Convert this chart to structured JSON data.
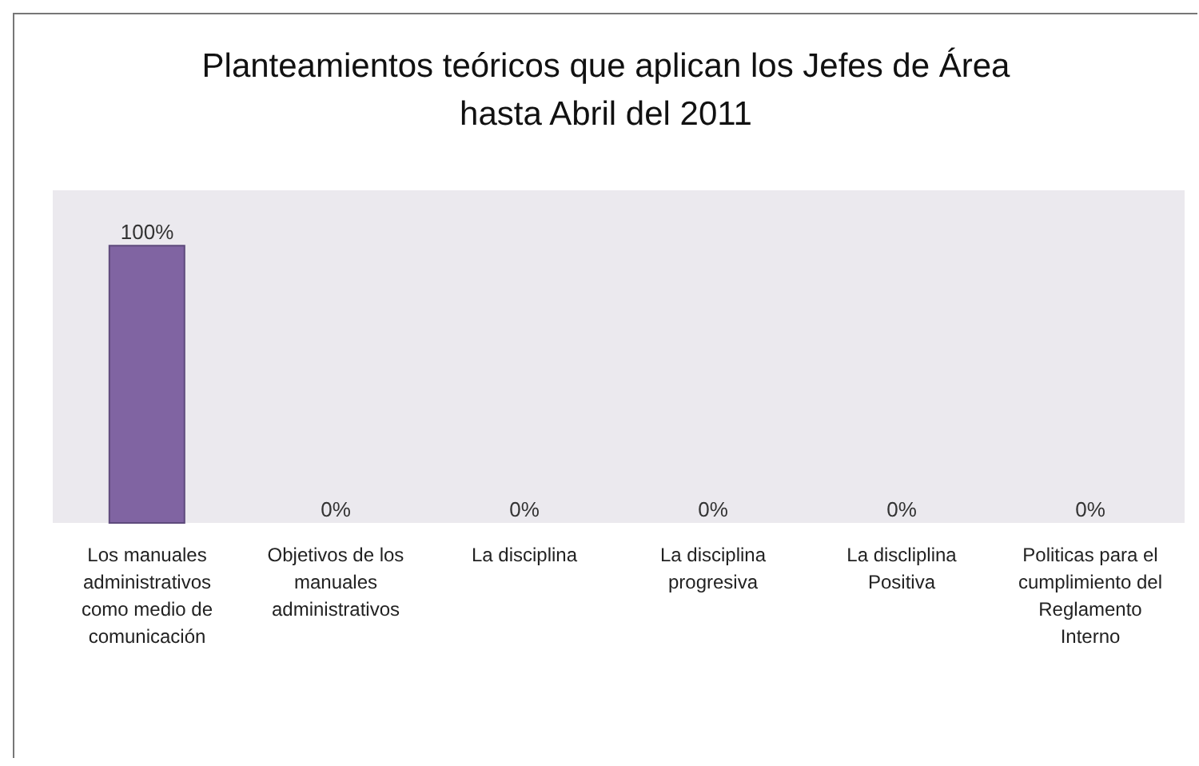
{
  "chart_data": {
    "type": "bar",
    "title": "Planteamientos teóricos que aplican los Jefes de Área hasta Abril del 2011",
    "categories": [
      "Los manuales administrativos como medio de comunicación",
      "Objetivos de los manuales administrativos",
      "La disciplina",
      "La disciplina progresiva",
      "La discliplina Positiva",
      "Politicas para el cumplimiento del Reglamento Interno"
    ],
    "values": [
      100,
      0,
      0,
      0,
      0,
      0
    ],
    "value_labels": [
      "100%",
      "0%",
      "0%",
      "0%",
      "0%",
      "0%"
    ],
    "color": "#8064a2"
  }
}
